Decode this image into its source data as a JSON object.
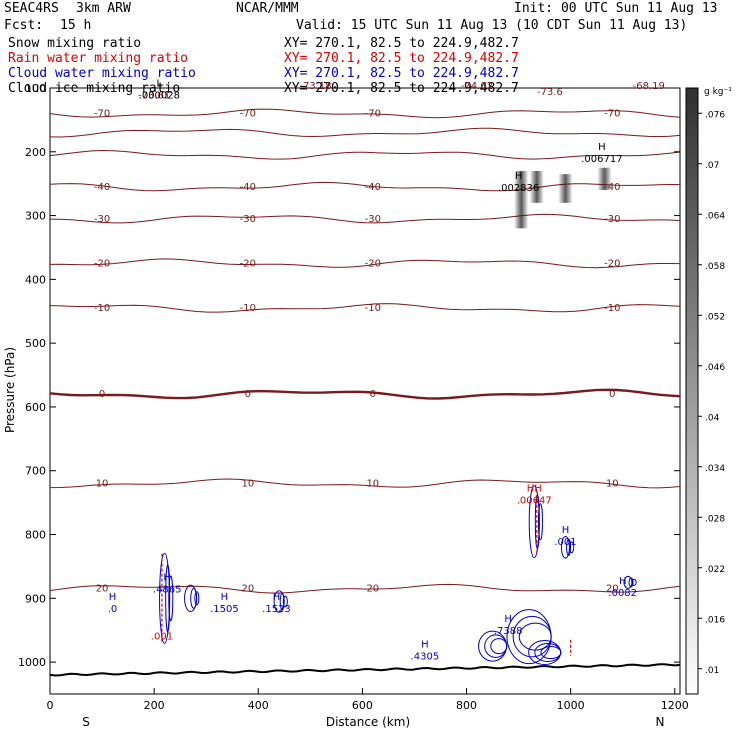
{
  "header": {
    "project": "SEAC4RS",
    "model": "3km ARW",
    "center": "NCAR/MMM",
    "init": "Init: 00 UTC Sun 11 Aug 13",
    "fcst_label": "Fcst:",
    "fcst_value": "15 h",
    "valid": "Valid: 15 UTC Sun 11 Aug 13 (10 CDT Sun 11 Aug 13)",
    "fields": [
      {
        "name": "Snow mixing ratio",
        "xy": "XY= 270.1, 82.5 to 224.9,482.7",
        "color": "#000000"
      },
      {
        "name": "Rain water mixing ratio",
        "xy": "XY= 270.1, 82.5 to 224.9,482.7",
        "color": "#e00000"
      },
      {
        "name": "Cloud water mixing ratio",
        "xy": "XY= 270.1, 82.5 to 224.9,482.7",
        "color": "#0000d0"
      },
      {
        "name": "Cloud ice mixing ratio",
        "xy": "XY= 270.1, 82.5 to 224.9,482.7",
        "color": "#000000"
      }
    ]
  },
  "chart_data": {
    "type": "line",
    "xlabel": "Distance (km)",
    "ylabel": "Pressure (hPa)",
    "xlim": [
      0,
      1210
    ],
    "ylim": [
      1050,
      100
    ],
    "xticks": [
      0,
      200,
      400,
      600,
      800,
      1000,
      1200
    ],
    "yticks": [
      100,
      200,
      300,
      400,
      500,
      600,
      700,
      800,
      900,
      1000
    ],
    "ytick_labels": [
      "100",
      "200",
      "300",
      "400",
      "500",
      "600",
      "700",
      "800",
      "900",
      "1000"
    ],
    "x_end_labels": {
      "left": "S",
      "right": "N"
    },
    "colorbar": {
      "unit": "g kg⁻¹",
      "ticks": [
        ".01",
        ".016",
        ".022",
        ".028",
        ".034",
        ".04",
        ".046",
        ".052",
        ".058",
        ".064",
        ".07",
        ".076"
      ]
    },
    "isotherms": [
      {
        "level": -70,
        "label": "-70",
        "p": 140
      },
      {
        "level": -60,
        "label": "",
        "p": 170
      },
      {
        "level": -50,
        "label": "",
        "p": 205
      },
      {
        "level": -40,
        "label": "-40",
        "p": 255
      },
      {
        "level": -30,
        "label": "-30",
        "p": 305
      },
      {
        "level": -20,
        "label": "-20",
        "p": 375
      },
      {
        "level": -10,
        "label": "-10",
        "p": 445
      },
      {
        "level": 0,
        "label": "0",
        "p": 580,
        "bold": true
      },
      {
        "level": 10,
        "label": "10",
        "p": 720
      },
      {
        "level": 20,
        "label": "20",
        "p": 885
      }
    ],
    "top_labels": [
      {
        "text": "-73.61",
        "x": 200,
        "p": 110
      },
      {
        "text": "-73.18",
        "x": 510,
        "p": 95
      },
      {
        "text": "-74.02",
        "x": 820,
        "p": 95
      },
      {
        "text": "-73.6",
        "x": 960,
        "p": 105
      },
      {
        "text": "-68.19",
        "x": 1150,
        "p": 95
      }
    ],
    "extrema": [
      {
        "mark": "L",
        "value": ".000028",
        "x": 210,
        "p": 110,
        "color": "#000000"
      },
      {
        "mark": "H",
        "value": ".002836",
        "x": 900,
        "p": 255,
        "color": "#000000"
      },
      {
        "mark": "H",
        "value": ".006717",
        "x": 1060,
        "p": 210,
        "color": "#000000"
      },
      {
        "mark": "H",
        "value": ".4865",
        "x": 225,
        "p": 885,
        "color": "#0000d0"
      },
      {
        "mark": "H",
        "value": ".0",
        "x": 120,
        "p": 915,
        "color": "#0000d0"
      },
      {
        "mark": "H",
        "value": ".1505",
        "x": 335,
        "p": 915,
        "color": "#0000d0"
      },
      {
        "mark": "H",
        "value": ".1523",
        "x": 435,
        "p": 915,
        "color": "#0000d0"
      },
      {
        "mark": "H",
        "value": ".4305",
        "x": 720,
        "p": 990,
        "color": "#0000d0"
      },
      {
        "mark": "H",
        "value": ".7388",
        "x": 880,
        "p": 950,
        "color": "#0000d0"
      },
      {
        "mark": "H",
        "value": ".001",
        "x": 990,
        "p": 810,
        "color": "#0000d0"
      },
      {
        "mark": "H",
        "value": ".0082",
        "x": 1100,
        "p": 890,
        "color": "#0000d0"
      },
      {
        "mark": "HH",
        "value": ".00647",
        "x": 930,
        "p": 745,
        "color": "#e00000"
      },
      {
        "mark": "",
        "value": ".001",
        "x": 215,
        "p": 958,
        "color": "#e00000"
      }
    ]
  }
}
